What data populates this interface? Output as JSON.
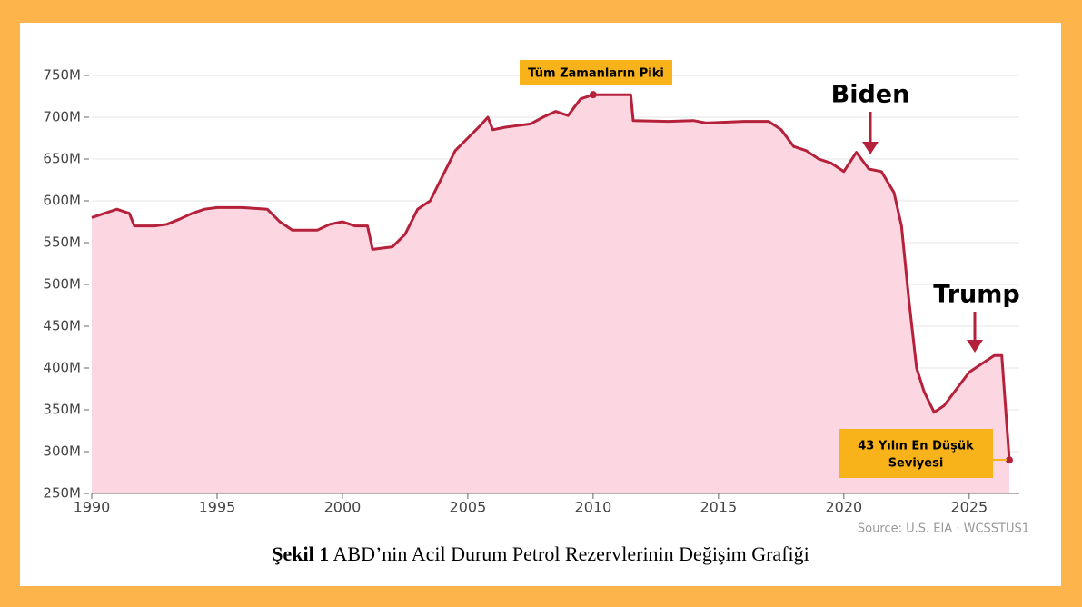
{
  "chart_data": {
    "type": "area",
    "x": [
      1990,
      1990.5,
      1991,
      1991.5,
      1991.7,
      1992.5,
      1993,
      1993.5,
      1994,
      1994.5,
      1995,
      1996,
      1997,
      1997.5,
      1998,
      1999,
      1999.5,
      2000,
      2000.5,
      2001,
      2001.2,
      2002,
      2002.5,
      2003,
      2003.5,
      2004,
      2004.5,
      2005,
      2005.5,
      2005.8,
      2006,
      2006.5,
      2007,
      2007.5,
      2008,
      2008.5,
      2009,
      2009.5,
      2010,
      2010.5,
      2011.5,
      2011.6,
      2013,
      2014,
      2014.5,
      2016,
      2017,
      2017.5,
      2018,
      2018.5,
      2019,
      2019.5,
      2020,
      2020.5,
      2021,
      2021.5,
      2022,
      2022.3,
      2022.6,
      2022.9,
      2023.2,
      2023.6,
      2024,
      2024.5,
      2025,
      2025.5,
      2026,
      2026.3,
      2026.6
    ],
    "values": [
      580000000,
      585000000,
      590000000,
      585000000,
      570000000,
      570000000,
      572000000,
      578000000,
      585000000,
      590000000,
      592000000,
      592000000,
      590000000,
      575000000,
      565000000,
      565000000,
      572000000,
      575000000,
      570000000,
      570000000,
      542000000,
      545000000,
      560000000,
      590000000,
      600000000,
      630000000,
      660000000,
      675000000,
      690000000,
      700000000,
      685000000,
      688000000,
      690000000,
      692000000,
      700000000,
      707000000,
      702000000,
      722000000,
      727000000,
      727000000,
      727000000,
      696000000,
      695000000,
      696000000,
      693000000,
      695000000,
      695000000,
      685000000,
      665000000,
      660000000,
      650000000,
      645000000,
      635000000,
      658000000,
      638000000,
      635000000,
      610000000,
      570000000,
      480000000,
      400000000,
      372000000,
      347000000,
      355000000,
      375000000,
      395000000,
      405000000,
      415000000,
      415000000,
      290000000
    ],
    "color": "#b5213a",
    "fill": "#fcd6e0",
    "xlim": [
      1990,
      2027
    ],
    "xticks": [
      1990,
      1995,
      2000,
      2005,
      2010,
      2015,
      2020,
      2025
    ],
    "ylim": [
      250000000,
      750000000
    ],
    "yticks": [
      {
        "value": 250000000,
        "label": "250M"
      },
      {
        "value": 300000000,
        "label": "300M"
      },
      {
        "value": 350000000,
        "label": "350M"
      },
      {
        "value": 400000000,
        "label": "400M"
      },
      {
        "value": 450000000,
        "label": "450M"
      },
      {
        "value": 500000000,
        "label": "500M"
      },
      {
        "value": 550000000,
        "label": "550M"
      },
      {
        "value": 600000000,
        "label": "600M"
      },
      {
        "value": 650000000,
        "label": "650M"
      },
      {
        "value": 700000000,
        "label": "700M"
      },
      {
        "value": 750000000,
        "label": "750M"
      }
    ],
    "grid": true,
    "annotations": {
      "peak": "Tüm Zamanların Piki",
      "biden": "Biden",
      "trump": "Trump",
      "low_line1": "43 Yılın En Düşük",
      "low_line2": "Seviyesi"
    },
    "source": "Source: U.S. EIA  ·  WCSSTUS1",
    "caption_label": "Şekil 1",
    "caption": "ABD’nin Acil Durum Petrol Rezervlerinin Değişim Grafiği"
  }
}
